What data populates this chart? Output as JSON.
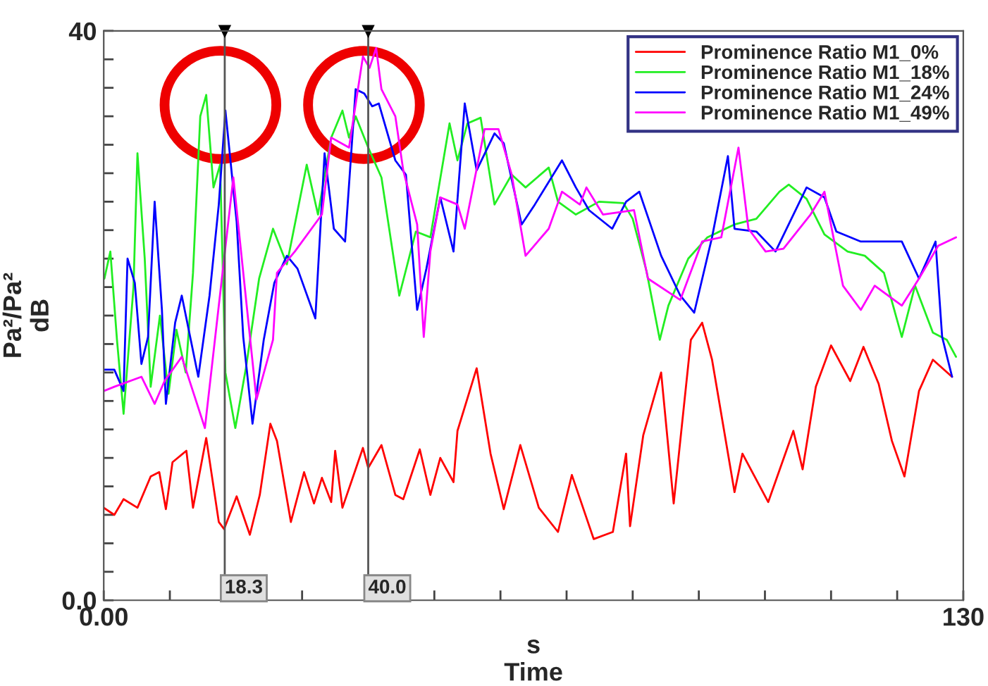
{
  "chart_data": {
    "type": "line",
    "xlabel": "s\nTime",
    "ylabel": "Pa²/Pa²\ndB",
    "xlim": [
      0,
      130
    ],
    "ylim": [
      0,
      40
    ],
    "xticks": [
      {
        "value": 0,
        "label": "0.00"
      },
      {
        "value": 10,
        "label": null
      },
      {
        "value": 20,
        "label": null
      },
      {
        "value": 30,
        "label": null
      },
      {
        "value": 40,
        "label": null
      },
      {
        "value": 50,
        "label": null
      },
      {
        "value": 60,
        "label": null
      },
      {
        "value": 70,
        "label": null
      },
      {
        "value": 80,
        "label": null
      },
      {
        "value": 90,
        "label": null
      },
      {
        "value": 100,
        "label": null
      },
      {
        "value": 110,
        "label": null
      },
      {
        "value": 120,
        "label": null
      },
      {
        "value": 130,
        "label": "130"
      }
    ],
    "yticks": [
      {
        "value": 0,
        "label": "0.0"
      },
      {
        "value": 2,
        "label": null
      },
      {
        "value": 4,
        "label": null
      },
      {
        "value": 6,
        "label": null
      },
      {
        "value": 8,
        "label": null
      },
      {
        "value": 10,
        "label": null
      },
      {
        "value": 12,
        "label": null
      },
      {
        "value": 14,
        "label": null
      },
      {
        "value": 16,
        "label": null
      },
      {
        "value": 18,
        "label": null
      },
      {
        "value": 20,
        "label": null
      },
      {
        "value": 22,
        "label": null
      },
      {
        "value": 24,
        "label": null
      },
      {
        "value": 26,
        "label": null
      },
      {
        "value": 28,
        "label": null
      },
      {
        "value": 30,
        "label": null
      },
      {
        "value": 32,
        "label": null
      },
      {
        "value": 34,
        "label": null
      },
      {
        "value": 36,
        "label": null
      },
      {
        "value": 38,
        "label": null
      },
      {
        "value": 40,
        "label": "40"
      }
    ],
    "grid": false,
    "legend": "top right",
    "marker": "none",
    "line_style": "solid",
    "ref_lines": [
      {
        "axis": "x",
        "value": 18.3,
        "label": "18.3",
        "color": "#555555"
      },
      {
        "axis": "x",
        "value": 40.0,
        "label": "40.0",
        "color": "#555555"
      }
    ],
    "series": [
      {
        "name": "Prominence Ratio M1_0%",
        "color": "#ff0000",
        "x": [
          0.0,
          1.6,
          3.0,
          5.1,
          7.1,
          8.4,
          9.4,
          10.4,
          12.5,
          13.5,
          15.5,
          17.4,
          18.2,
          20.1,
          22.1,
          23.6,
          25.2,
          26.2,
          28.3,
          30.3,
          31.8,
          33.0,
          34.4,
          35.0,
          36.1,
          39.2,
          40.0,
          42.0,
          44.1,
          45.3,
          47.8,
          49.4,
          50.9,
          52.9,
          53.5,
          56.4,
          58.5,
          60.5,
          63.0,
          65.8,
          68.7,
          70.8,
          74.1,
          77.0,
          79.0,
          79.6,
          81.6,
          84.3,
          86.2,
          88.8,
          90.5,
          92.0,
          95.4,
          96.6,
          100.5,
          104.3,
          105.7,
          107.7,
          110.0,
          112.9,
          114.9,
          117.2,
          119.2,
          121.1,
          123.3,
          125.4,
          128.3
        ],
        "values": [
          6.5,
          6.0,
          7.1,
          6.5,
          8.7,
          9.0,
          6.4,
          9.7,
          10.5,
          6.5,
          11.4,
          5.5,
          5.0,
          7.3,
          4.6,
          7.4,
          12.4,
          11.2,
          5.5,
          9.0,
          6.8,
          8.6,
          6.9,
          10.5,
          6.5,
          10.7,
          9.3,
          10.9,
          7.4,
          7.1,
          10.6,
          7.4,
          10.0,
          8.3,
          11.9,
          16.3,
          10.3,
          6.4,
          10.9,
          6.5,
          4.8,
          8.8,
          4.3,
          4.8,
          10.3,
          5.2,
          11.6,
          16.0,
          6.8,
          18.3,
          19.5,
          16.9,
          7.6,
          10.3,
          6.9,
          11.9,
          9.2,
          15.0,
          17.9,
          15.4,
          17.8,
          15.2,
          11.2,
          8.7,
          14.7,
          16.9,
          15.7
        ]
      },
      {
        "name": "Prominence Ratio M1_18%",
        "color": "#22ee22",
        "x": [
          0.1,
          1.0,
          2.0,
          3.0,
          4.5,
          5.1,
          6.2,
          7.1,
          8.5,
          9.8,
          11.0,
          12.4,
          13.5,
          14.6,
          15.5,
          16.6,
          17.6,
          18.4,
          19.9,
          21.5,
          23.5,
          25.6,
          27.7,
          30.7,
          32.4,
          34.4,
          36.1,
          37.1,
          38.1,
          40.0,
          42.0,
          44.7,
          47.2,
          49.4,
          52.3,
          53.5,
          55.0,
          57.0,
          59.1,
          61.7,
          63.8,
          67.3,
          68.7,
          71.4,
          74.9,
          78.6,
          80.0,
          82.1,
          84.1,
          85.4,
          88.4,
          91.3,
          95.4,
          98.7,
          102.2,
          103.6,
          106.3,
          109.0,
          112.5,
          115.1,
          118.0,
          120.7,
          122.7,
          125.4,
          127.5,
          128.9
        ],
        "values": [
          22.6,
          24.5,
          18.3,
          13.1,
          22.0,
          31.4,
          24.0,
          15.0,
          20.0,
          14.5,
          19.0,
          16.0,
          23.0,
          34.0,
          35.5,
          29.0,
          30.6,
          16.0,
          12.1,
          16.3,
          22.6,
          26.1,
          23.6,
          30.6,
          27.1,
          32.5,
          34.4,
          32.5,
          34.0,
          31.8,
          29.7,
          21.4,
          25.9,
          25.5,
          33.5,
          30.9,
          33.5,
          33.9,
          27.8,
          29.9,
          29.0,
          30.4,
          28.0,
          27.1,
          28.0,
          27.9,
          26.8,
          23.1,
          18.3,
          20.7,
          24.0,
          25.5,
          26.4,
          26.8,
          28.7,
          29.2,
          28.2,
          25.7,
          24.5,
          24.2,
          23.0,
          18.5,
          22.1,
          18.8,
          18.3,
          17.1
        ]
      },
      {
        "name": "Prominence Ratio M1_24%",
        "color": "#0000ff",
        "x": [
          0.1,
          1.6,
          3.0,
          3.6,
          4.7,
          5.7,
          6.7,
          7.7,
          8.8,
          9.4,
          10.8,
          11.8,
          14.3,
          16.0,
          17.4,
          18.4,
          20.1,
          21.1,
          22.5,
          24.2,
          25.8,
          27.7,
          29.3,
          32.0,
          33.4,
          34.8,
          36.5,
          38.1,
          39.4,
          40.6,
          41.6,
          44.1,
          45.7,
          47.4,
          48.8,
          50.9,
          52.9,
          54.6,
          56.4,
          59.1,
          60.5,
          63.2,
          65.2,
          69.3,
          71.4,
          73.4,
          76.9,
          79.0,
          81.0,
          84.3,
          87.2,
          89.3,
          92.0,
          94.4,
          95.4,
          98.7,
          101.6,
          106.3,
          109.0,
          110.8,
          114.5,
          120.7,
          123.3,
          125.8,
          126.8,
          128.3
        ],
        "values": [
          16.2,
          16.2,
          14.7,
          24.0,
          22.3,
          16.6,
          18.5,
          28.0,
          20.4,
          13.8,
          19.5,
          21.4,
          15.7,
          21.4,
          27.8,
          34.4,
          26.6,
          18.5,
          12.4,
          18.3,
          22.3,
          24.2,
          23.3,
          19.8,
          31.4,
          26.1,
          25.2,
          35.9,
          35.6,
          34.7,
          34.9,
          30.9,
          29.9,
          20.4,
          23.3,
          28.3,
          24.5,
          34.9,
          30.2,
          32.8,
          32.1,
          26.4,
          27.8,
          30.9,
          29.0,
          27.4,
          26.1,
          28.0,
          28.7,
          24.2,
          21.4,
          20.2,
          25.5,
          31.2,
          26.1,
          25.9,
          24.5,
          29.0,
          28.3,
          25.9,
          25.2,
          25.2,
          22.6,
          25.2,
          18.5,
          15.7
        ]
      },
      {
        "name": "Prominence Ratio M1_49%",
        "color": "#ff00ff",
        "x": [
          0.0,
          1.6,
          5.7,
          7.7,
          9.2,
          11.8,
          15.3,
          19.6,
          23.1,
          25.6,
          26.2,
          28.9,
          33.0,
          34.4,
          37.1,
          39.2,
          40.2,
          41.2,
          42.0,
          44.1,
          45.3,
          47.4,
          48.4,
          49.4,
          50.9,
          53.5,
          54.6,
          57.6,
          59.7,
          61.7,
          63.8,
          67.3,
          69.3,
          72.0,
          73.0,
          75.5,
          80.2,
          82.3,
          87.2,
          90.5,
          93.4,
          96.0,
          97.5,
          100.1,
          102.8,
          106.9,
          109.0,
          111.8,
          114.5,
          116.6,
          120.7,
          123.3,
          126.2,
          128.9
        ],
        "values": [
          14.7,
          15.0,
          15.7,
          13.8,
          15.4,
          17.1,
          12.1,
          29.7,
          14.1,
          18.3,
          23.0,
          24.5,
          27.1,
          32.5,
          31.8,
          38.2,
          37.4,
          38.8,
          35.9,
          34.0,
          30.2,
          26.4,
          18.5,
          24.5,
          28.3,
          27.8,
          26.1,
          33.1,
          33.1,
          29.9,
          24.2,
          26.1,
          28.7,
          27.8,
          29.0,
          27.1,
          27.4,
          22.6,
          21.1,
          25.2,
          25.5,
          31.8,
          26.1,
          24.5,
          24.7,
          27.1,
          28.7,
          22.1,
          20.4,
          22.1,
          20.7,
          22.6,
          24.9,
          25.5
        ]
      }
    ]
  }
}
